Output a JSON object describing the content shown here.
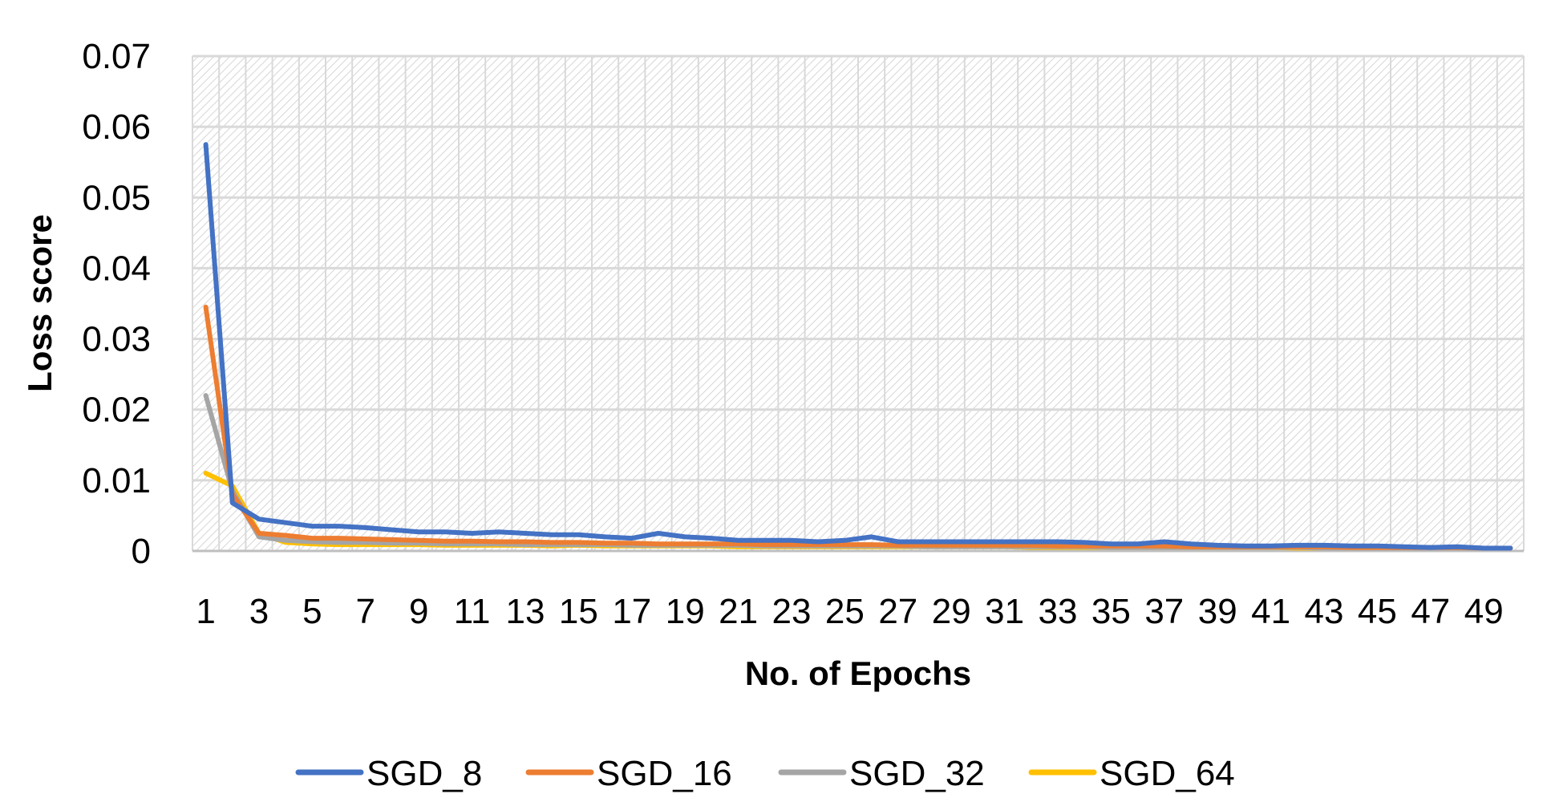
{
  "chart_data": {
    "type": "line",
    "title": "",
    "xlabel": "No. of Epochs",
    "ylabel": "Loss score",
    "ylim": [
      0,
      0.07
    ],
    "yticks": [
      "0",
      "0.01",
      "0.02",
      "0.03",
      "0.04",
      "0.05",
      "0.06",
      "0.07"
    ],
    "x": [
      1,
      2,
      3,
      4,
      5,
      6,
      7,
      8,
      9,
      10,
      11,
      12,
      13,
      14,
      15,
      16,
      17,
      18,
      19,
      20,
      21,
      22,
      23,
      24,
      25,
      26,
      27,
      28,
      29,
      30,
      31,
      32,
      33,
      34,
      35,
      36,
      37,
      38,
      39,
      40,
      41,
      42,
      43,
      44,
      45,
      46,
      47,
      48,
      49,
      50
    ],
    "xtick_labels": [
      "1",
      "3",
      "5",
      "7",
      "9",
      "11",
      "13",
      "15",
      "17",
      "19",
      "21",
      "23",
      "25",
      "27",
      "29",
      "31",
      "33",
      "35",
      "37",
      "39",
      "41",
      "43",
      "45",
      "47",
      "49"
    ],
    "grid": true,
    "legend_position": "bottom",
    "series": [
      {
        "name": "SGD_8",
        "color": "#4472C4",
        "values": [
          0.0575,
          0.0068,
          0.0045,
          0.004,
          0.0035,
          0.0035,
          0.0033,
          0.003,
          0.0027,
          0.0027,
          0.0025,
          0.0027,
          0.0025,
          0.0023,
          0.0023,
          0.002,
          0.0018,
          0.0025,
          0.002,
          0.0018,
          0.0015,
          0.0015,
          0.0015,
          0.0013,
          0.0015,
          0.002,
          0.0013,
          0.0013,
          0.0013,
          0.0013,
          0.0013,
          0.0013,
          0.0013,
          0.0012,
          0.001,
          0.001,
          0.0013,
          0.001,
          0.0008,
          0.0007,
          0.0007,
          0.0008,
          0.0008,
          0.0007,
          0.0007,
          0.0006,
          0.0005,
          0.0006,
          0.0004,
          0.0004
        ]
      },
      {
        "name": "SGD_16",
        "color": "#ED7D31",
        "values": [
          0.0345,
          0.008,
          0.0025,
          0.0022,
          0.0018,
          0.0018,
          0.0017,
          0.0016,
          0.0015,
          0.0014,
          0.0014,
          0.0013,
          0.0013,
          0.0012,
          0.0012,
          0.0011,
          0.0011,
          0.001,
          0.001,
          0.001,
          0.001,
          0.0009,
          0.0009,
          0.0009,
          0.0009,
          0.0009,
          0.0008,
          0.0008,
          0.0008,
          0.0008,
          0.0008,
          0.0008,
          0.0007,
          0.0007,
          0.0007,
          0.0007,
          0.0007,
          0.0006,
          0.0006,
          0.0006,
          0.0006,
          0.0006,
          0.0006,
          0.0005,
          0.0005,
          0.0005,
          0.0005,
          0.0005,
          0.0004,
          0.0004
        ]
      },
      {
        "name": "SGD_32",
        "color": "#A5A5A5",
        "values": [
          0.022,
          0.0085,
          0.002,
          0.0015,
          0.0013,
          0.0012,
          0.0012,
          0.0011,
          0.0011,
          0.001,
          0.001,
          0.001,
          0.0009,
          0.0009,
          0.0009,
          0.0009,
          0.0008,
          0.0008,
          0.0008,
          0.0008,
          0.0008,
          0.0007,
          0.0007,
          0.0007,
          0.0007,
          0.0007,
          0.0007,
          0.0006,
          0.0006,
          0.0006,
          0.0006,
          0.0006,
          0.0006,
          0.0006,
          0.0005,
          0.0005,
          0.0005,
          0.0005,
          0.0005,
          0.0005,
          0.0005,
          0.0005,
          0.0004,
          0.0004,
          0.0004,
          0.0004,
          0.0004,
          0.0004,
          0.0004,
          0.0004
        ]
      },
      {
        "name": "SGD_64",
        "color": "#FFC000",
        "values": [
          0.011,
          0.0092,
          0.0025,
          0.0012,
          0.001,
          0.0009,
          0.0009,
          0.0009,
          0.0009,
          0.0008,
          0.0008,
          0.0008,
          0.0008,
          0.0007,
          0.0008,
          0.0007,
          0.0007,
          0.0007,
          0.0007,
          0.0007,
          0.0006,
          0.0006,
          0.0006,
          0.0006,
          0.0006,
          0.0006,
          0.0006,
          0.0006,
          0.0006,
          0.0006,
          0.0006,
          0.0005,
          0.0005,
          0.0005,
          0.0005,
          0.0005,
          0.0005,
          0.0005,
          0.0005,
          0.0005,
          0.0005,
          0.0004,
          0.0004,
          0.0004,
          0.0004,
          0.0004,
          0.0004,
          0.0004,
          0.0004,
          0.0004
        ]
      }
    ]
  }
}
